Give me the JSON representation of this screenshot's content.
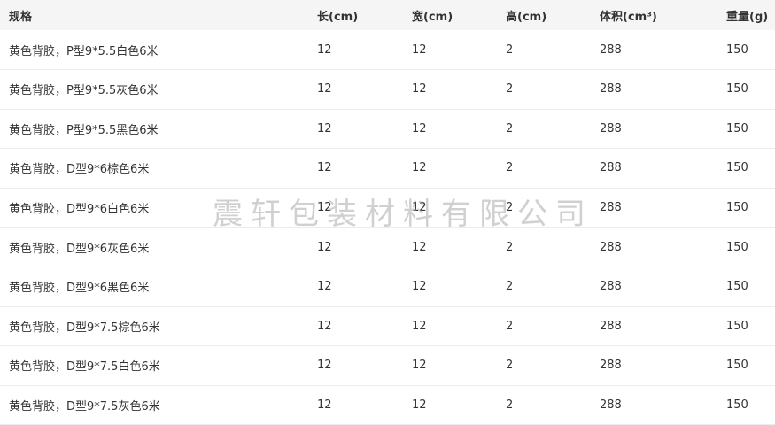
{
  "table": {
    "columns": [
      "规格",
      "长(cm)",
      "宽(cm)",
      "高(cm)",
      "体积(cm³)",
      "重量(g)"
    ],
    "rows": [
      [
        "黄色背胶，P型9*5.5白色6米",
        "12",
        "12",
        "2",
        "288",
        "150"
      ],
      [
        "黄色背胶，P型9*5.5灰色6米",
        "12",
        "12",
        "2",
        "288",
        "150"
      ],
      [
        "黄色背胶，P型9*5.5黑色6米",
        "12",
        "12",
        "2",
        "288",
        "150"
      ],
      [
        "黄色背胶，D型9*6棕色6米",
        "12",
        "12",
        "2",
        "288",
        "150"
      ],
      [
        "黄色背胶，D型9*6白色6米",
        "12",
        "12",
        "2",
        "288",
        "150"
      ],
      [
        "黄色背胶，D型9*6灰色6米",
        "12",
        "12",
        "2",
        "288",
        "150"
      ],
      [
        "黄色背胶，D型9*6黑色6米",
        "12",
        "12",
        "2",
        "288",
        "150"
      ],
      [
        "黄色背胶，D型9*7.5棕色6米",
        "12",
        "12",
        "2",
        "288",
        "150"
      ],
      [
        "黄色背胶，D型9*7.5白色6米",
        "12",
        "12",
        "2",
        "288",
        "150"
      ],
      [
        "黄色背胶，D型9*7.5灰色6米",
        "12",
        "12",
        "2",
        "288",
        "150"
      ]
    ]
  },
  "watermark": "震轩包装材料有限公司",
  "colors": {
    "header_bg": "#f5f5f5",
    "row_border": "#ececec",
    "text": "#333333"
  }
}
